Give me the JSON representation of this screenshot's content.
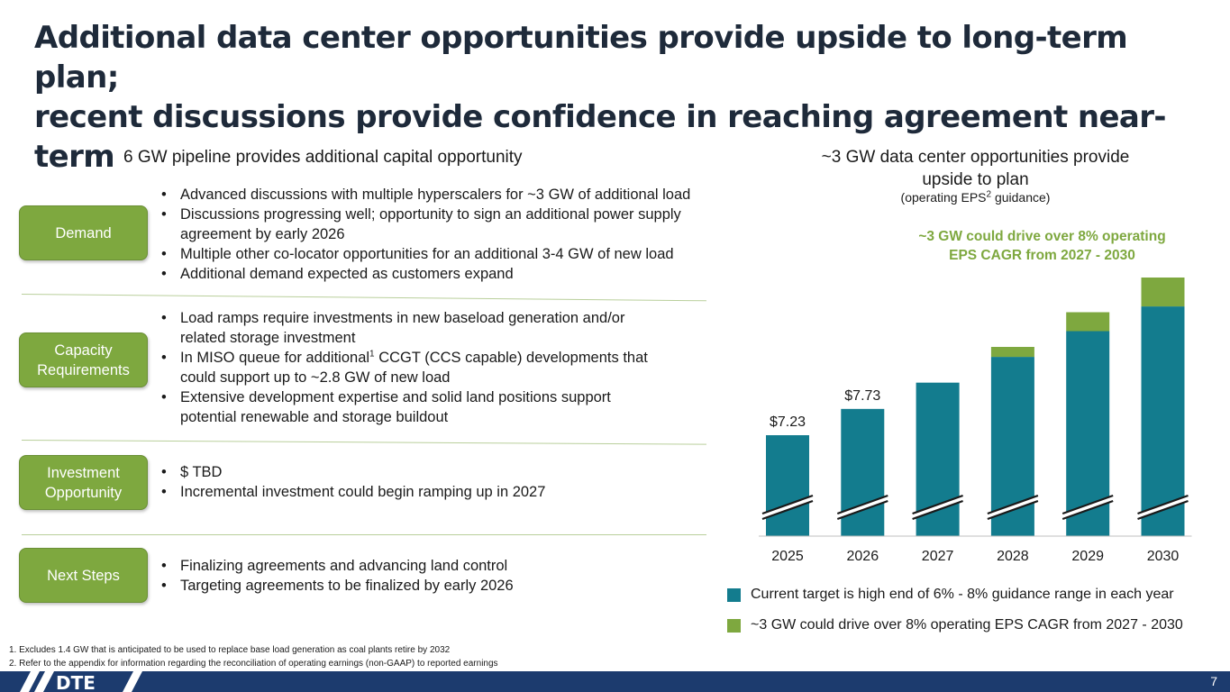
{
  "title": {
    "line1": "Additional data center opportunities provide upside to long-term plan;",
    "line2": "recent discussions provide confidence in reaching agreement near-term"
  },
  "left": {
    "heading": "6 GW pipeline provides additional capital opportunity",
    "sections": [
      {
        "label": "Demand",
        "bullets": [
          "Advanced discussions with multiple hyperscalers for ~3 GW of additional load",
          "Discussions progressing well; opportunity to sign an additional power supply agreement by early 2026",
          "Multiple other co-locator opportunities for an additional 3-4 GW of new load",
          "Additional demand expected as customers expand"
        ]
      },
      {
        "label_l1": "Capacity",
        "label_l2": "Requirements",
        "bullets": [
          "Load ramps require investments in new baseload generation and/or related storage investment",
          "Extensive development expertise and solid land positions support potential renewable and storage buildout"
        ],
        "miso_pre": "In MISO queue for additional",
        "miso_sup": "1",
        "miso_post": " CCGT (CCS capable) developments that could support up to ~2.8 GW of new load"
      },
      {
        "label_l1": "Investment",
        "label_l2": "Opportunity",
        "bullets": [
          "$ TBD",
          "Incremental investment could begin ramping up in 2027"
        ]
      },
      {
        "label": "Next Steps",
        "bullets": [
          "Finalizing agreements and advancing land control",
          "Targeting agreements to be finalized by early 2026"
        ]
      }
    ]
  },
  "right": {
    "title_l1": "~3 GW data center opportunities provide",
    "title_l2": "upside to plan",
    "sub_pre": "(operating EPS",
    "sub_sup": "2",
    "sub_post": " guidance)",
    "upside_note_l1": "~3 GW could drive over 8% operating",
    "upside_note_l2": "EPS CAGR  from 2027 - 2030"
  },
  "chart_data": {
    "type": "bar",
    "stacked": true,
    "title": "~3 GW data center opportunities provide upside to plan",
    "subtitle": "(operating EPS2 guidance)",
    "categories": [
      "2025",
      "2026",
      "2027",
      "2028",
      "2029",
      "2030"
    ],
    "series": [
      {
        "name": "Current target is high end of 6% - 8% guidance range in each year",
        "color": "#137c8e",
        "values": [
          7.23,
          7.73,
          8.23,
          8.72,
          9.21,
          9.68
        ]
      },
      {
        "name": "~3 GW could drive over 8% operating EPS CAGR from 2027 - 2030",
        "color": "#7ea83f",
        "values": [
          0,
          0,
          0,
          0.19,
          0.36,
          0.55
        ]
      }
    ],
    "data_labels": [
      "$7.23",
      "$7.73",
      null,
      null,
      null,
      null
    ],
    "axis_break": true,
    "ylim": [
      6.5,
      10.5
    ],
    "legend_position": "bottom"
  },
  "legend": [
    {
      "label": "Current target is high end of 6% - 8% guidance range in each year",
      "color": "#137c8e"
    },
    {
      "label": "~3 GW could drive over 8% operating EPS CAGR from 2027 - 2030",
      "color": "#7ea83f"
    }
  ],
  "footnotes": [
    "1.   Excludes 1.4 GW that is anticipated to be used to replace base load generation as coal plants retire by 2032",
    "2.   Refer to the appendix for information regarding the reconciliation of operating earnings (non-GAAP) to reported earnings"
  ],
  "footer": {
    "logo_text": "DTE",
    "page_number": "7"
  },
  "colors": {
    "accent_green": "#7ea83f",
    "teal": "#137c8e",
    "navy": "#1c3b6e"
  }
}
